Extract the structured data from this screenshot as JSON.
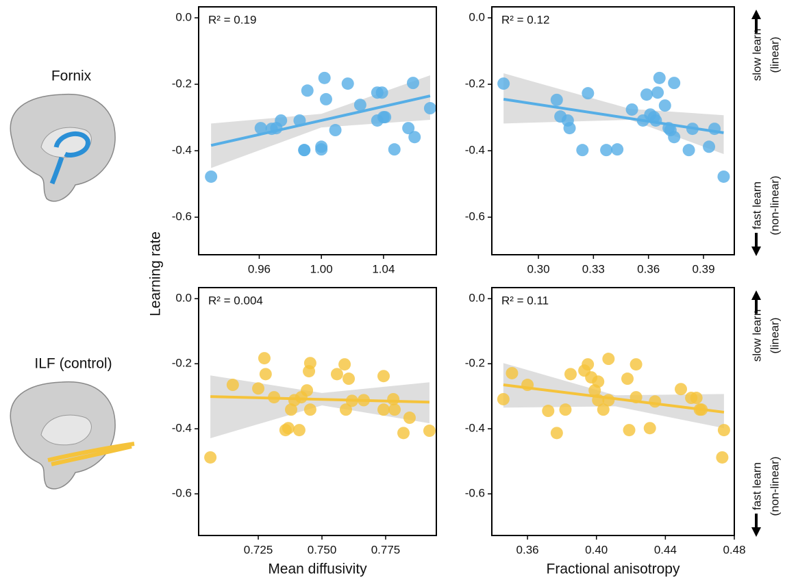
{
  "chart_data": [
    {
      "type": "scatter",
      "annotation": "R² = 0.19",
      "color": "#56aee6",
      "x": [
        0.929,
        0.961,
        0.968,
        0.971,
        0.974,
        0.986,
        0.991,
        0.989,
        0.989,
        1.0,
        1.0,
        1.002,
        1.003,
        1.009,
        1.017,
        1.025,
        1.036,
        1.036,
        1.039,
        1.041,
        1.04,
        1.047,
        1.056,
        1.059,
        1.06,
        1.07
      ],
      "values": [
        -0.478,
        -0.332,
        -0.334,
        -0.332,
        -0.309,
        -0.309,
        -0.219,
        -0.398,
        -0.398,
        -0.388,
        -0.396,
        -0.181,
        -0.245,
        -0.338,
        -0.198,
        -0.262,
        -0.309,
        -0.225,
        -0.225,
        -0.299,
        -0.299,
        -0.396,
        -0.332,
        -0.196,
        -0.359,
        -0.272
      ],
      "fit": {
        "x": [
          0.929,
          1.07
        ],
        "values": [
          -0.384,
          -0.235
        ]
      },
      "band": {
        "x": [
          0.929,
          1.0,
          1.07
        ],
        "lower": [
          -0.452,
          -0.33,
          -0.307
        ],
        "upper": [
          -0.318,
          -0.289,
          -0.173
        ]
      },
      "xlim": [
        0.921,
        1.074
      ],
      "ylim": [
        -0.713,
        0.033
      ],
      "xticks": [
        0.96,
        {
          "value": 1.0,
          "label": "1.00"
        },
        1.04
      ],
      "yticks": [
        {
          "value": 0,
          "label": "0.0"
        },
        -0.2,
        -0.4,
        -0.6
      ]
    },
    {
      "type": "scatter",
      "annotation": "R² = 0.12",
      "color": "#56aee6",
      "x": [
        0.281,
        0.31,
        0.312,
        0.316,
        0.317,
        0.324,
        0.327,
        0.337,
        0.343,
        0.351,
        0.357,
        0.359,
        0.361,
        0.363,
        0.364,
        0.365,
        0.366,
        0.369,
        0.371,
        0.372,
        0.374,
        0.374,
        0.382,
        0.384,
        0.393,
        0.396,
        0.401
      ],
      "values": [
        -0.198,
        -0.247,
        -0.297,
        -0.309,
        -0.332,
        -0.398,
        -0.227,
        -0.398,
        -0.396,
        -0.276,
        -0.309,
        -0.231,
        -0.291,
        -0.299,
        -0.309,
        -0.225,
        -0.181,
        -0.264,
        -0.332,
        -0.338,
        -0.359,
        -0.196,
        -0.398,
        -0.334,
        -0.388,
        -0.334,
        -0.478
      ],
      "fit": {
        "x": [
          0.281,
          0.401
        ],
        "values": [
          -0.245,
          -0.346
        ]
      },
      "band": {
        "x": [
          0.281,
          0.35,
          0.401
        ],
        "lower": [
          -0.318,
          -0.307,
          -0.41
        ],
        "upper": [
          -0.167,
          -0.274,
          -0.293
        ]
      },
      "xlim": [
        0.2746,
        0.4068
      ],
      "ylim": [
        -0.713,
        0.033
      ],
      "xticks": [
        {
          "value": 0.3,
          "label": "0.30"
        },
        0.33,
        0.36,
        0.39
      ],
      "yticks": [
        {
          "value": 0,
          "label": "0.0"
        },
        -0.2,
        -0.4,
        -0.6
      ]
    },
    {
      "type": "scatter",
      "annotation": "R² = 0.004",
      "color": "#f5c33b",
      "xlabel": "Mean diffusivity",
      "x": [
        0.7062,
        0.715,
        0.725,
        0.7274,
        0.7279,
        0.7312,
        0.7357,
        0.7368,
        0.7379,
        0.7392,
        0.7411,
        0.7419,
        0.7441,
        0.7449,
        0.7454,
        0.7454,
        0.7559,
        0.7589,
        0.7594,
        0.7605,
        0.7618,
        0.7664,
        0.7742,
        0.7742,
        0.778,
        0.7785,
        0.782,
        0.7844,
        0.7922
      ],
      "values": [
        -0.488,
        -0.265,
        -0.276,
        -0.183,
        -0.232,
        -0.303,
        -0.404,
        -0.398,
        -0.341,
        -0.312,
        -0.404,
        -0.303,
        -0.282,
        -0.223,
        -0.198,
        -0.341,
        -0.232,
        -0.202,
        -0.341,
        -0.246,
        -0.314,
        -0.312,
        -0.238,
        -0.341,
        -0.309,
        -0.341,
        -0.413,
        -0.366,
        -0.406
      ],
      "fit": {
        "x": [
          0.7062,
          0.7922
        ],
        "values": [
          -0.301,
          -0.318
        ]
      },
      "band": {
        "x": [
          0.7062,
          0.75,
          0.7922
        ],
        "lower": [
          -0.429,
          -0.328,
          -0.383
        ],
        "upper": [
          -0.236,
          -0.29,
          -0.257
        ]
      },
      "xlim": [
        0.7016,
        0.7949
      ],
      "ylim": [
        -0.728,
        0.034
      ],
      "xticks": [
        0.725,
        {
          "value": 0.75,
          "label": "0.750"
        },
        0.775
      ],
      "yticks": [
        {
          "value": 0,
          "label": "0.0"
        },
        -0.2,
        -0.4,
        -0.6
      ]
    },
    {
      "type": "scatter",
      "annotation": "R² = 0.11",
      "color": "#f5c33b",
      "xlabel": "Fractional anisotropy",
      "x": [
        0.346,
        0.351,
        0.36,
        0.372,
        0.377,
        0.382,
        0.385,
        0.393,
        0.395,
        0.397,
        0.399,
        0.401,
        0.401,
        0.404,
        0.407,
        0.407,
        0.418,
        0.419,
        0.423,
        0.423,
        0.431,
        0.434,
        0.449,
        0.455,
        0.46,
        0.458,
        0.461,
        0.474,
        0.473
      ],
      "values": [
        -0.309,
        -0.229,
        -0.265,
        -0.345,
        -0.413,
        -0.341,
        -0.232,
        -0.221,
        -0.202,
        -0.242,
        -0.282,
        -0.255,
        -0.312,
        -0.341,
        -0.312,
        -0.185,
        -0.246,
        -0.404,
        -0.202,
        -0.303,
        -0.398,
        -0.316,
        -0.278,
        -0.305,
        -0.341,
        -0.305,
        -0.341,
        -0.404,
        -0.488
      ],
      "fit": {
        "x": [
          0.346,
          0.474
        ],
        "values": [
          -0.265,
          -0.349
        ]
      },
      "band": {
        "x": [
          0.346,
          0.411,
          0.474
        ],
        "lower": [
          -0.335,
          -0.331,
          -0.398
        ],
        "upper": [
          -0.198,
          -0.297,
          -0.293
        ]
      },
      "xlim": [
        0.3393,
        0.48
      ],
      "ylim": [
        -0.728,
        0.034
      ],
      "xticks": [
        0.36,
        {
          "value": 0.4,
          "label": "0.40"
        },
        0.44,
        0.48
      ],
      "yticks": [
        {
          "value": 0,
          "label": "0.0"
        },
        -0.2,
        -0.4,
        -0.6
      ]
    }
  ],
  "row_labels": [
    "Fornix",
    "ILF (control)"
  ],
  "y_label": "Learning rate",
  "side_labels": {
    "slow": [
      "slow learn",
      "(linear)"
    ],
    "fast": [
      "fast learn",
      "(non-linear)"
    ]
  }
}
